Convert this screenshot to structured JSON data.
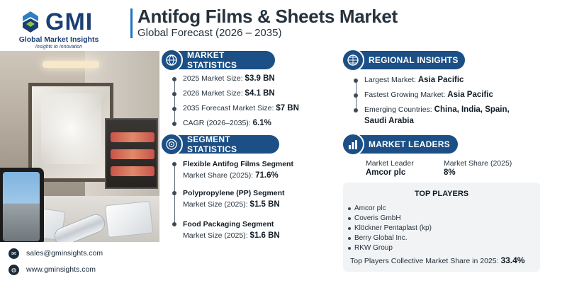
{
  "brand": {
    "name": "GMI",
    "full_name": "Global Market Insights",
    "tagline": "Insights to Innovation"
  },
  "header": {
    "title": "Antifog Films & Sheets Market",
    "subtitle": "Global Forecast (2026 – 2035)"
  },
  "market_statistics": {
    "heading": "MARKET STATISTICS",
    "items": [
      {
        "label": "2025 Market Size: ",
        "value": "$3.9 BN"
      },
      {
        "label": "2026 Market Size: ",
        "value": "$4.1 BN"
      },
      {
        "label": "2035 Forecast Market Size: ",
        "value": "$7 BN"
      },
      {
        "label": "CAGR (2026–2035): ",
        "value": "6.1%"
      }
    ]
  },
  "regional_insights": {
    "heading": "REGIONAL INSIGHTS",
    "items": [
      {
        "label": "Largest Market: ",
        "value": "Asia Pacific"
      },
      {
        "label": "Fastest Growing Market: ",
        "value": "Asia Pacific"
      },
      {
        "label": "Emerging Countries: ",
        "value": "China, India, Spain,",
        "value_line2": "Saudi Arabia"
      }
    ]
  },
  "segment_statistics": {
    "heading": "SEGMENT STATISTICS",
    "items": [
      {
        "title": "Flexible Antifog Films Segment",
        "label": "Market Share (2025): ",
        "value": "71.6%"
      },
      {
        "title": "Polypropylene (PP) Segment",
        "label": "Market Size (2025): ",
        "value": "$1.5 BN"
      },
      {
        "title": "Food Packaging Segment",
        "label": "Market Size (2025): ",
        "value": "$1.6 BN"
      }
    ]
  },
  "market_leaders": {
    "heading": "MARKET LEADERS",
    "leader_label": "Market Leader",
    "leader_value": "Amcor plc",
    "share_label": "Market Share (2025)",
    "share_value": "8%"
  },
  "top_players": {
    "heading": "TOP PLAYERS",
    "items": [
      "Amcor plc",
      "Coveris GmbH",
      "Klöckner Pentaplast (kp)",
      "Berry Global Inc.",
      "RKW Group"
    ],
    "total_label": "Top Players Collective Market Share in 2025: ",
    "total_value": "33.4%"
  },
  "contact": {
    "email": "sales@gminsights.com",
    "website": "www.gminsights.com"
  },
  "icons": {
    "market_statistics": "globe-dollar-icon",
    "regional_insights": "globe-icon",
    "segment_statistics": "target-chart-icon",
    "market_leaders": "bar-chart-icon",
    "email": "mail-icon",
    "website": "globe-icon"
  },
  "colors": {
    "section_header": "#1b4f86",
    "brand": "#1b3f74",
    "accent_bar": "#1e73be"
  }
}
